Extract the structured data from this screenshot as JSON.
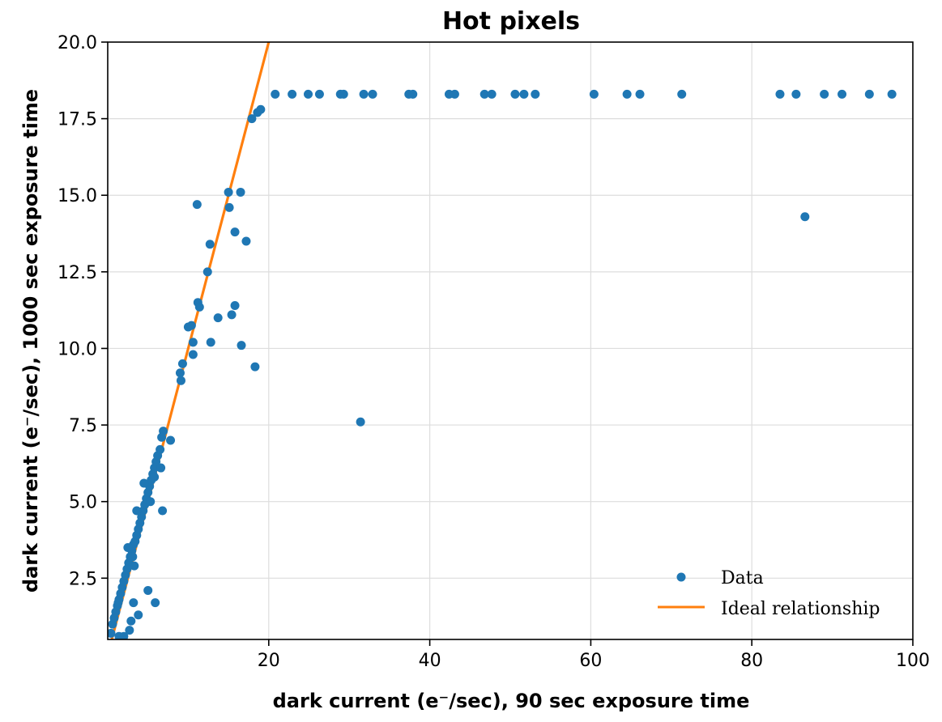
{
  "chart_data": {
    "type": "scatter",
    "title": "Hot pixels",
    "xlabel": "dark current (e⁻/sec), 90 sec exposure time",
    "ylabel": "dark current (e⁻/sec), 1000 sec exposure time",
    "xlim": [
      0,
      100
    ],
    "ylim": [
      0.5,
      20.0
    ],
    "xticks": [
      20,
      40,
      60,
      80,
      100
    ],
    "xtick_labels": [
      "20",
      "40",
      "60",
      "80",
      "100"
    ],
    "yticks": [
      2.5,
      5.0,
      7.5,
      10.0,
      12.5,
      15.0,
      17.5,
      20.0
    ],
    "ytick_labels": [
      "2.5",
      "5.0",
      "7.5",
      "10.0",
      "12.5",
      "15.0",
      "17.5",
      "20.0"
    ],
    "grid": true,
    "legend_position": "lower-right",
    "colors": {
      "data": "#1f77b4",
      "ideal": "#ff7f0e",
      "grid": "#dddddd"
    },
    "series": [
      {
        "name": "Data",
        "kind": "scatter",
        "points": [
          [
            0.4,
            0.7
          ],
          [
            0.6,
            1.0
          ],
          [
            0.8,
            1.2
          ],
          [
            1.0,
            1.4
          ],
          [
            1.2,
            1.6
          ],
          [
            1.4,
            1.8
          ],
          [
            1.6,
            2.0
          ],
          [
            1.8,
            2.2
          ],
          [
            2.0,
            2.4
          ],
          [
            2.2,
            2.6
          ],
          [
            2.4,
            2.8
          ],
          [
            2.6,
            3.0
          ],
          [
            2.8,
            3.2
          ],
          [
            3.0,
            3.4
          ],
          [
            3.2,
            3.6
          ],
          [
            3.4,
            3.7
          ],
          [
            3.6,
            3.9
          ],
          [
            3.8,
            4.1
          ],
          [
            4.0,
            4.3
          ],
          [
            4.2,
            4.5
          ],
          [
            4.4,
            4.7
          ],
          [
            4.6,
            4.9
          ],
          [
            4.8,
            5.1
          ],
          [
            5.0,
            5.3
          ],
          [
            5.2,
            5.5
          ],
          [
            5.4,
            5.7
          ],
          [
            5.6,
            5.9
          ],
          [
            5.8,
            6.1
          ],
          [
            6.0,
            6.3
          ],
          [
            6.2,
            6.5
          ],
          [
            6.5,
            6.7
          ],
          [
            6.7,
            7.1
          ],
          [
            6.9,
            7.3
          ],
          [
            1.3,
            1.7
          ],
          [
            2.5,
            3.5
          ],
          [
            3.1,
            3.2
          ],
          [
            3.6,
            4.7
          ],
          [
            4.5,
            5.6
          ],
          [
            5.3,
            5.0
          ],
          [
            5.8,
            5.8
          ],
          [
            6.6,
            6.1
          ],
          [
            7.8,
            7.0
          ],
          [
            6.8,
            4.7
          ],
          [
            3.3,
            2.9
          ],
          [
            5.0,
            2.1
          ],
          [
            5.9,
            1.7
          ],
          [
            3.2,
            1.7
          ],
          [
            3.8,
            1.3
          ],
          [
            2.9,
            1.1
          ],
          [
            2.7,
            0.8
          ],
          [
            1.4,
            0.6
          ],
          [
            2.0,
            0.6
          ],
          [
            9.0,
            9.2
          ],
          [
            9.1,
            8.95
          ],
          [
            9.3,
            9.5
          ],
          [
            10.0,
            10.7
          ],
          [
            10.4,
            10.75
          ],
          [
            10.6,
            10.2
          ],
          [
            10.6,
            9.8
          ],
          [
            11.2,
            11.5
          ],
          [
            11.4,
            11.35
          ],
          [
            11.1,
            14.7
          ],
          [
            12.4,
            12.5
          ],
          [
            12.7,
            13.4
          ],
          [
            12.8,
            10.2
          ],
          [
            13.7,
            11.0
          ],
          [
            15.0,
            15.1
          ],
          [
            15.1,
            14.6
          ],
          [
            15.4,
            11.1
          ],
          [
            15.8,
            13.8
          ],
          [
            15.8,
            11.4
          ],
          [
            16.5,
            15.1
          ],
          [
            16.6,
            10.1
          ],
          [
            17.2,
            13.5
          ],
          [
            17.9,
            17.5
          ],
          [
            18.3,
            9.4
          ],
          [
            18.6,
            17.7
          ],
          [
            19.0,
            17.8
          ],
          [
            31.4,
            7.6
          ],
          [
            86.6,
            14.3
          ],
          [
            20.8,
            18.3
          ],
          [
            22.9,
            18.3
          ],
          [
            24.9,
            18.3
          ],
          [
            26.3,
            18.3
          ],
          [
            28.9,
            18.3
          ],
          [
            29.3,
            18.3
          ],
          [
            31.8,
            18.3
          ],
          [
            32.9,
            18.3
          ],
          [
            37.4,
            18.3
          ],
          [
            37.9,
            18.3
          ],
          [
            42.4,
            18.3
          ],
          [
            43.1,
            18.3
          ],
          [
            46.8,
            18.3
          ],
          [
            47.7,
            18.3
          ],
          [
            50.6,
            18.3
          ],
          [
            51.7,
            18.3
          ],
          [
            53.1,
            18.3
          ],
          [
            60.4,
            18.3
          ],
          [
            64.5,
            18.3
          ],
          [
            66.1,
            18.3
          ],
          [
            71.3,
            18.3
          ],
          [
            83.5,
            18.3
          ],
          [
            85.5,
            18.3
          ],
          [
            89.0,
            18.3
          ],
          [
            91.2,
            18.3
          ],
          [
            94.6,
            18.3
          ],
          [
            97.4,
            18.3
          ]
        ]
      },
      {
        "name": "Ideal relationship",
        "kind": "line",
        "points": [
          [
            0,
            0
          ],
          [
            20,
            20
          ]
        ]
      }
    ]
  }
}
